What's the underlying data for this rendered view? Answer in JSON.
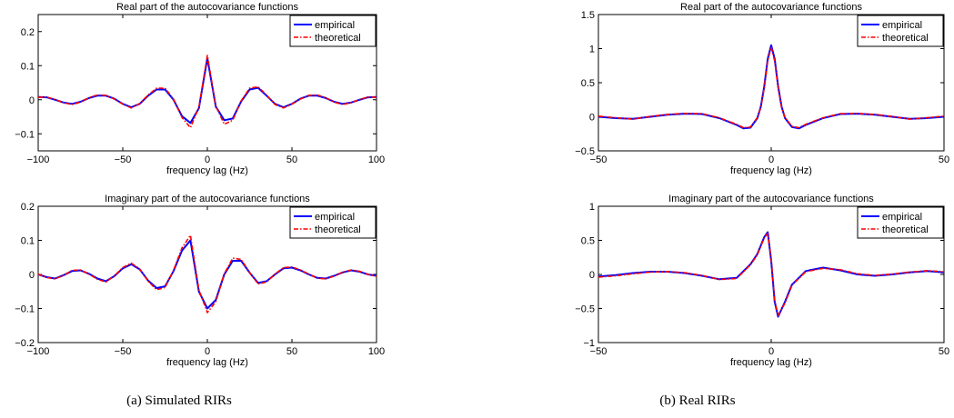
{
  "captions": {
    "left": "(a) Simulated RIRs",
    "right": "(b) Real RIRs"
  },
  "colors": {
    "empirical": "#0000ff",
    "theoretical": "#ff0000"
  },
  "chart_data": [
    {
      "type": "line",
      "title": "Real part of the autocovariance functions",
      "xlabel": "frequency lag (Hz)",
      "ylabel": "",
      "xlim": [
        -100,
        100
      ],
      "ylim": [
        -0.15,
        0.25
      ],
      "xticks": [
        -100,
        -50,
        0,
        50,
        100
      ],
      "xtick_labels": [
        "−100",
        "−50",
        "0",
        "50",
        "100"
      ],
      "yticks": [
        -0.1,
        0,
        0.1,
        0.2
      ],
      "ytick_labels": [
        "−0.1",
        "0",
        "0.1",
        "0.2"
      ],
      "legend": "top-right",
      "x": [
        -100,
        -95,
        -90,
        -85,
        -80,
        -75,
        -70,
        -65,
        -60,
        -55,
        -50,
        -45,
        -40,
        -35,
        -30,
        -25,
        -20,
        -15,
        -10,
        -5,
        0,
        5,
        10,
        15,
        20,
        25,
        30,
        35,
        40,
        45,
        50,
        55,
        60,
        65,
        70,
        75,
        80,
        85,
        90,
        95,
        100
      ],
      "series": [
        {
          "name": "empirical",
          "style": "solid",
          "values": [
            0.008,
            0.007,
            0.0,
            -0.008,
            -0.012,
            -0.006,
            0.005,
            0.012,
            0.012,
            0.003,
            -0.012,
            -0.022,
            -0.012,
            0.012,
            0.03,
            0.03,
            0.0,
            -0.048,
            -0.068,
            -0.025,
            0.122,
            -0.02,
            -0.06,
            -0.055,
            -0.005,
            0.03,
            0.035,
            0.012,
            -0.012,
            -0.022,
            -0.012,
            0.003,
            0.012,
            0.012,
            0.005,
            -0.006,
            -0.012,
            -0.008,
            0.0,
            0.007,
            0.008
          ]
        },
        {
          "name": "theoretical",
          "style": "dashdot",
          "values": [
            0.007,
            0.008,
            0.001,
            -0.009,
            -0.014,
            -0.007,
            0.006,
            0.014,
            0.013,
            0.002,
            -0.013,
            -0.024,
            -0.011,
            0.014,
            0.034,
            0.034,
            0.002,
            -0.052,
            -0.082,
            -0.022,
            0.13,
            -0.018,
            -0.072,
            -0.06,
            -0.003,
            0.034,
            0.038,
            0.014,
            -0.014,
            -0.024,
            -0.013,
            0.002,
            0.013,
            0.014,
            0.006,
            -0.007,
            -0.014,
            -0.009,
            0.001,
            0.008,
            0.007
          ]
        }
      ]
    },
    {
      "type": "line",
      "title": "Imaginary part of the autocovariance functions",
      "xlabel": "frequency lag (Hz)",
      "ylabel": "",
      "xlim": [
        -100,
        100
      ],
      "ylim": [
        -0.2,
        0.2
      ],
      "xticks": [
        -100,
        -50,
        0,
        50,
        100
      ],
      "xtick_labels": [
        "−100",
        "−50",
        "0",
        "50",
        "100"
      ],
      "yticks": [
        -0.2,
        -0.1,
        0,
        0.1,
        0.2
      ],
      "ytick_labels": [
        "−0.2",
        "−0.1",
        "0",
        "0.1",
        "0.2"
      ],
      "legend": "top-right",
      "x": [
        -100,
        -95,
        -90,
        -85,
        -80,
        -75,
        -70,
        -65,
        -60,
        -55,
        -50,
        -45,
        -40,
        -35,
        -30,
        -25,
        -20,
        -15,
        -10,
        -5,
        0,
        5,
        10,
        15,
        20,
        25,
        30,
        35,
        40,
        45,
        50,
        55,
        60,
        65,
        70,
        75,
        80,
        85,
        90,
        95,
        100
      ],
      "series": [
        {
          "name": "empirical",
          "style": "solid",
          "values": [
            0.0,
            -0.008,
            -0.012,
            -0.002,
            0.01,
            0.012,
            0.002,
            -0.012,
            -0.02,
            -0.005,
            0.018,
            0.03,
            0.015,
            -0.018,
            -0.04,
            -0.035,
            0.01,
            0.07,
            0.1,
            -0.05,
            -0.1,
            -0.075,
            0.0,
            0.04,
            0.04,
            0.005,
            -0.025,
            -0.02,
            0.0,
            0.018,
            0.02,
            0.012,
            0.0,
            -0.01,
            -0.012,
            -0.004,
            0.006,
            0.012,
            0.008,
            0.0,
            -0.004
          ]
        },
        {
          "name": "theoretical",
          "style": "dashdot",
          "values": [
            0.001,
            -0.009,
            -0.013,
            -0.003,
            0.012,
            0.013,
            0.001,
            -0.014,
            -0.022,
            -0.004,
            0.02,
            0.033,
            0.016,
            -0.02,
            -0.045,
            -0.038,
            0.012,
            0.078,
            0.115,
            -0.045,
            -0.112,
            -0.08,
            0.002,
            0.048,
            0.044,
            0.006,
            -0.028,
            -0.022,
            0.001,
            0.02,
            0.022,
            0.013,
            0.001,
            -0.011,
            -0.013,
            -0.005,
            0.007,
            0.013,
            0.009,
            0.0,
            -0.005
          ]
        }
      ]
    },
    {
      "type": "line",
      "title": "Real part of the autocovariance functions",
      "xlabel": "frequency lag (Hz)",
      "ylabel": "",
      "xlim": [
        -50,
        50
      ],
      "ylim": [
        -0.5,
        1.5
      ],
      "xticks": [
        -50,
        0,
        50
      ],
      "xtick_labels": [
        "−50",
        "0",
        "50"
      ],
      "yticks": [
        -0.5,
        0,
        0.5,
        1,
        1.5
      ],
      "ytick_labels": [
        "−0.5",
        "0",
        "0.5",
        "1",
        "1.5"
      ],
      "legend": "top-right",
      "x": [
        -50,
        -45,
        -40,
        -35,
        -30,
        -25,
        -20,
        -15,
        -10,
        -8,
        -6,
        -4,
        -3,
        -2,
        -1,
        0,
        1,
        2,
        3,
        4,
        6,
        8,
        10,
        15,
        20,
        25,
        30,
        35,
        40,
        45,
        50
      ],
      "series": [
        {
          "name": "empirical",
          "style": "solid",
          "values": [
            0.0,
            -0.02,
            -0.03,
            0.0,
            0.03,
            0.045,
            0.04,
            -0.02,
            -0.12,
            -0.17,
            -0.16,
            -0.02,
            0.15,
            0.45,
            0.85,
            1.05,
            0.85,
            0.45,
            0.15,
            -0.02,
            -0.15,
            -0.17,
            -0.12,
            -0.02,
            0.04,
            0.045,
            0.03,
            0.0,
            -0.03,
            -0.02,
            0.0
          ]
        },
        {
          "name": "theoretical",
          "style": "dashdot",
          "values": [
            0.01,
            -0.015,
            -0.035,
            0.005,
            0.035,
            0.05,
            0.045,
            -0.015,
            -0.11,
            -0.16,
            -0.15,
            -0.01,
            0.14,
            0.43,
            0.82,
            1.02,
            0.82,
            0.43,
            0.14,
            -0.01,
            -0.14,
            -0.16,
            -0.11,
            -0.015,
            0.045,
            0.05,
            0.035,
            0.005,
            -0.035,
            -0.015,
            0.01
          ]
        }
      ]
    },
    {
      "type": "line",
      "title": "Imaginary part of the autocovariance functions",
      "xlabel": "frequency lag (Hz)",
      "ylabel": "",
      "xlim": [
        -50,
        50
      ],
      "ylim": [
        -1,
        1
      ],
      "xticks": [
        -50,
        0,
        50
      ],
      "xtick_labels": [
        "−50",
        "0",
        "50"
      ],
      "yticks": [
        -1,
        -0.5,
        0,
        0.5,
        1
      ],
      "ytick_labels": [
        "−1",
        "−0.5",
        "0",
        "0.5",
        "1"
      ],
      "legend": "top-right",
      "x": [
        -50,
        -45,
        -40,
        -35,
        -30,
        -25,
        -20,
        -15,
        -10,
        -6,
        -4,
        -2,
        -1,
        0,
        1,
        2,
        4,
        6,
        10,
        15,
        20,
        25,
        30,
        35,
        40,
        45,
        50
      ],
      "series": [
        {
          "name": "empirical",
          "style": "solid",
          "values": [
            -0.03,
            -0.01,
            0.02,
            0.04,
            0.04,
            0.02,
            -0.02,
            -0.07,
            -0.05,
            0.15,
            0.3,
            0.55,
            0.62,
            0.2,
            -0.4,
            -0.62,
            -0.4,
            -0.15,
            0.05,
            0.1,
            0.06,
            0.0,
            -0.02,
            0.0,
            0.03,
            0.05,
            0.03
          ]
        },
        {
          "name": "theoretical",
          "style": "dashdot",
          "values": [
            -0.04,
            -0.02,
            0.01,
            0.035,
            0.042,
            0.025,
            -0.015,
            -0.075,
            -0.06,
            0.14,
            0.29,
            0.54,
            0.6,
            0.22,
            -0.38,
            -0.6,
            -0.42,
            -0.16,
            0.04,
            0.09,
            0.07,
            0.01,
            -0.015,
            0.005,
            0.035,
            0.055,
            0.04
          ]
        }
      ]
    }
  ]
}
